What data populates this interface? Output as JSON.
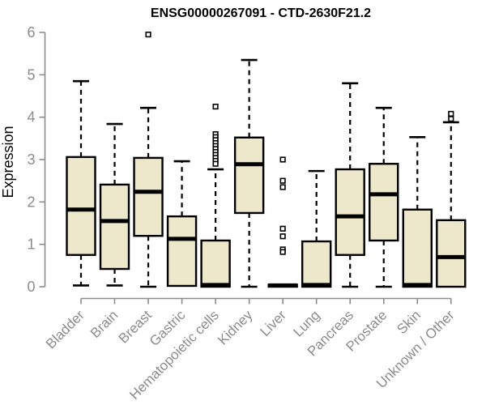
{
  "chart_data": {
    "type": "boxplot",
    "title": "ENSG00000267091 - CTD-2630F21.2",
    "ylabel": "Expression",
    "xlabel": "",
    "ylim": [
      0,
      6
    ],
    "yticks": [
      0,
      1,
      2,
      3,
      4,
      5,
      6
    ],
    "grid": false,
    "legend": "none",
    "categories": [
      "Bladder",
      "Brain",
      "Breast",
      "Gastric",
      "Hematopoietic cells",
      "Kidney",
      "Liver",
      "Lung",
      "Pancreas",
      "Prostate",
      "Skin",
      "Unknown / Other"
    ],
    "series": [
      {
        "name": "Bladder",
        "whisker_low": 0.03,
        "q1": 0.75,
        "median": 1.82,
        "q3": 3.06,
        "whisker_high": 4.85,
        "outliers": []
      },
      {
        "name": "Brain",
        "whisker_low": 0.03,
        "q1": 0.42,
        "median": 1.55,
        "q3": 2.41,
        "whisker_high": 3.84,
        "outliers": []
      },
      {
        "name": "Breast",
        "whisker_low": 0.0,
        "q1": 1.2,
        "median": 2.24,
        "q3": 3.04,
        "whisker_high": 4.22,
        "outliers": [
          5.95
        ]
      },
      {
        "name": "Gastric",
        "whisker_low": 0.0,
        "q1": 0.02,
        "median": 1.13,
        "q3": 1.66,
        "whisker_high": 2.96,
        "outliers": []
      },
      {
        "name": "Hematopoietic cells",
        "whisker_low": 0.0,
        "q1": 0.0,
        "median": 0.04,
        "q3": 1.09,
        "whisker_high": 2.77,
        "outliers": [
          4.25,
          3.6,
          3.53,
          3.46,
          3.39,
          3.32,
          3.25,
          3.18,
          3.11,
          3.04,
          2.97,
          2.9
        ]
      },
      {
        "name": "Kidney",
        "whisker_low": 0.0,
        "q1": 1.74,
        "median": 2.89,
        "q3": 3.52,
        "whisker_high": 5.35,
        "outliers": []
      },
      {
        "name": "Liver",
        "whisker_low": 0.0,
        "q1": 0.0,
        "median": 0.03,
        "q3": 0.05,
        "whisker_high": 0.05,
        "outliers": [
          3.0,
          2.5,
          2.35,
          1.37,
          1.19,
          0.88,
          0.82
        ]
      },
      {
        "name": "Lung",
        "whisker_low": 0.0,
        "q1": 0.0,
        "median": 0.04,
        "q3": 1.07,
        "whisker_high": 2.73,
        "outliers": []
      },
      {
        "name": "Pancreas",
        "whisker_low": 0.0,
        "q1": 0.75,
        "median": 1.66,
        "q3": 2.77,
        "whisker_high": 4.8,
        "outliers": []
      },
      {
        "name": "Prostate",
        "whisker_low": 0.0,
        "q1": 1.09,
        "median": 2.18,
        "q3": 2.9,
        "whisker_high": 4.22,
        "outliers": []
      },
      {
        "name": "Skin",
        "whisker_low": 0.0,
        "q1": 0.0,
        "median": 0.04,
        "q3": 1.82,
        "whisker_high": 3.53,
        "outliers": []
      },
      {
        "name": "Unknown / Other",
        "whisker_low": 0.0,
        "q1": 0.0,
        "median": 0.7,
        "q3": 1.57,
        "whisker_high": 3.88,
        "outliers": [
          4.08,
          3.96
        ]
      }
    ],
    "colors": {
      "box_fill": "#EDE8CC",
      "box_stroke": "#000000",
      "median": "#000000",
      "outlier_stroke": "#000000",
      "outlier_fill": "#FFFFFF",
      "axis": "#8C8C8C",
      "tick_label": "#8C8C8C",
      "title": "#000000",
      "background": "#FFFFFF"
    }
  }
}
